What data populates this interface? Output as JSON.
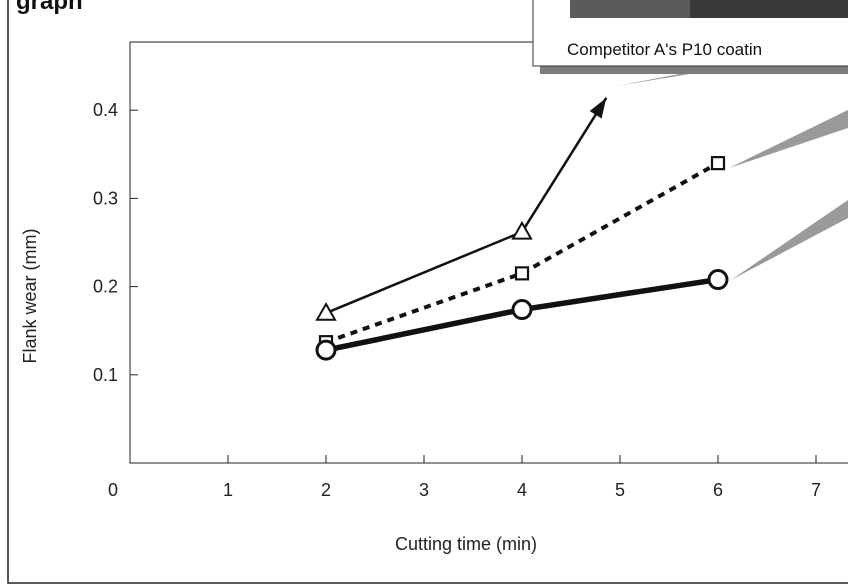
{
  "figure": {
    "heading_fragment": "graph",
    "inset_caption": "Competitor A's P10 coatin"
  },
  "chart_data": {
    "type": "line",
    "xlabel": "Cutting time (min)",
    "ylabel": "Flank wear (mm)",
    "xlim": [
      0,
      7
    ],
    "ylim": [
      0,
      0.48
    ],
    "x_ticks": [
      "0",
      "1",
      "2",
      "3",
      "4",
      "5",
      "6",
      "7"
    ],
    "y_ticks": [
      "0.1",
      "0.2",
      "0.3",
      "0.4"
    ],
    "grid": false,
    "series": [
      {
        "marker": "triangle",
        "style": "solid-thin",
        "color": "#111111",
        "x": [
          2,
          4
        ],
        "y": [
          0.17,
          0.262
        ],
        "continues_off_scale": true
      },
      {
        "marker": "square",
        "style": "dashed",
        "color": "#111111",
        "x": [
          2,
          4,
          6
        ],
        "y": [
          0.137,
          0.215,
          0.34
        ]
      },
      {
        "marker": "circle",
        "style": "solid-thick",
        "color": "#111111",
        "x": [
          2,
          4,
          6
        ],
        "y": [
          0.128,
          0.174,
          0.208
        ]
      }
    ]
  },
  "colors": {
    "ink": "#111111",
    "callout_gray": "#9a9a9a",
    "inset_shadow": "#7d7d7d"
  }
}
